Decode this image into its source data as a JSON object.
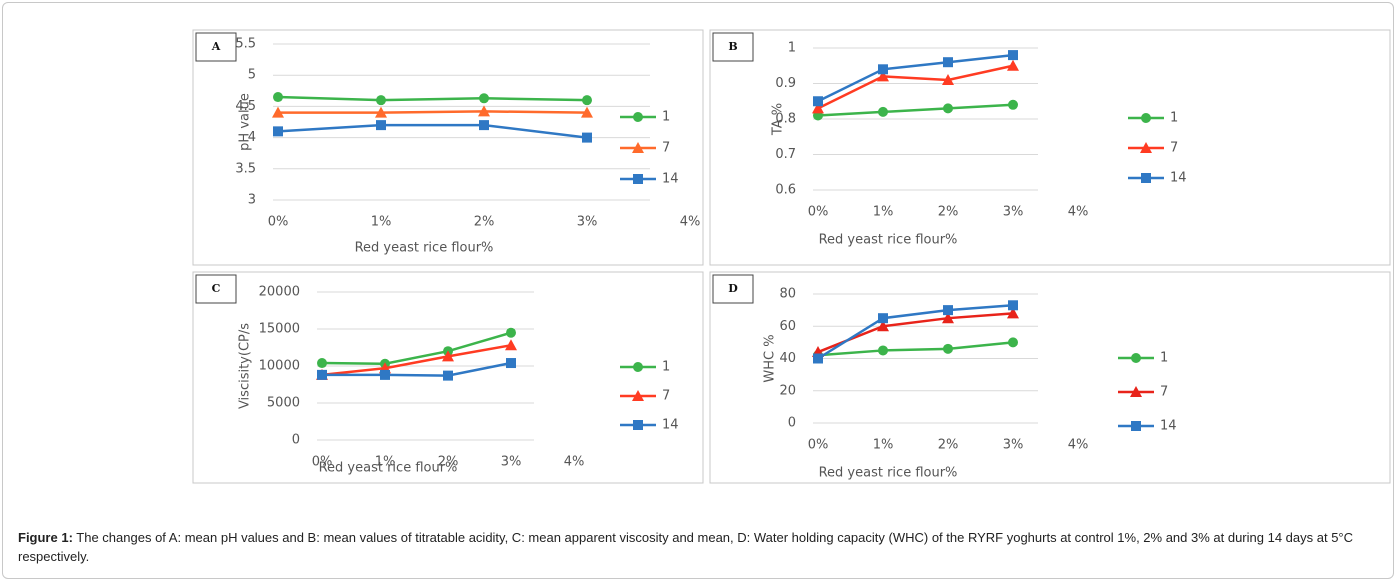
{
  "chart_data": [
    {
      "type": "line",
      "title": "A",
      "y_label": "pH value",
      "x_label": "Red yeast rice flour%",
      "x": [
        0,
        1,
        2,
        3
      ],
      "xlim": [
        0,
        4
      ],
      "xticks": [
        {
          "value": 0,
          "label": "0%"
        },
        {
          "value": 1,
          "label": "1%"
        },
        {
          "value": 2,
          "label": "2%"
        },
        {
          "value": 3,
          "label": "3%"
        },
        {
          "value": 4,
          "label": "4%"
        }
      ],
      "ylim": [
        3,
        5.5
      ],
      "yticks": [
        3,
        3.5,
        4,
        4.5,
        5,
        5.5
      ],
      "grid": true,
      "legend": "right",
      "series": [
        {
          "name": "1",
          "color": "#3cb44b",
          "marker": "circle",
          "values": [
            4.65,
            4.6,
            4.63,
            4.6
          ]
        },
        {
          "name": "7",
          "color": "#ff6a2b",
          "marker": "triangle",
          "values": [
            4.4,
            4.4,
            4.42,
            4.4
          ]
        },
        {
          "name": "14",
          "color": "#2f78c4",
          "marker": "square",
          "values": [
            4.1,
            4.2,
            4.2,
            4.0
          ]
        }
      ]
    },
    {
      "type": "line",
      "title": "B",
      "y_label": "TA %",
      "x_label": "Red yeast rice flour%",
      "x": [
        0,
        1,
        2,
        3
      ],
      "xlim": [
        0,
        4
      ],
      "xticks": [
        {
          "value": 0,
          "label": "0%"
        },
        {
          "value": 1,
          "label": "1%"
        },
        {
          "value": 2,
          "label": "2%"
        },
        {
          "value": 3,
          "label": "3%"
        },
        {
          "value": 4,
          "label": "4%"
        }
      ],
      "ylim": [
        0.6,
        1
      ],
      "yticks": [
        0.6,
        0.7,
        0.8,
        0.9,
        1
      ],
      "grid": true,
      "legend": "right",
      "series": [
        {
          "name": "1",
          "color": "#3cb44b",
          "marker": "circle",
          "values": [
            0.81,
            0.82,
            0.83,
            0.84
          ]
        },
        {
          "name": "7",
          "color": "#ff3b22",
          "marker": "triangle",
          "values": [
            0.83,
            0.92,
            0.91,
            0.95
          ]
        },
        {
          "name": "14",
          "color": "#2f78c4",
          "marker": "square",
          "values": [
            0.85,
            0.94,
            0.96,
            0.98
          ]
        }
      ]
    },
    {
      "type": "line",
      "title": "C",
      "y_label": "Viscisity(CP/s",
      "x_label": "Red yeast rice flour%",
      "x": [
        0,
        1,
        2,
        3
      ],
      "xlim": [
        0,
        4
      ],
      "xticks": [
        {
          "value": 0,
          "label": "0%"
        },
        {
          "value": 1,
          "label": "1%"
        },
        {
          "value": 2,
          "label": "2%"
        },
        {
          "value": 3,
          "label": "3%"
        },
        {
          "value": 4,
          "label": "4%"
        }
      ],
      "ylim": [
        0,
        20000
      ],
      "yticks": [
        0,
        5000,
        10000,
        15000,
        20000
      ],
      "grid": true,
      "legend": "right",
      "series": [
        {
          "name": "1",
          "color": "#3cb44b",
          "marker": "circle",
          "values": [
            10400,
            10300,
            12000,
            14500
          ]
        },
        {
          "name": "7",
          "color": "#ff3b22",
          "marker": "triangle",
          "values": [
            8800,
            9700,
            11300,
            12800
          ]
        },
        {
          "name": "14",
          "color": "#2f78c4",
          "marker": "square",
          "values": [
            8800,
            8800,
            8700,
            10400
          ]
        }
      ]
    },
    {
      "type": "line",
      "title": "D",
      "y_label": "WHC %",
      "x_label": "Red yeast rice flour%",
      "x": [
        0,
        1,
        2,
        3
      ],
      "xlim": [
        0,
        4
      ],
      "xticks": [
        {
          "value": 0,
          "label": "0%"
        },
        {
          "value": 1,
          "label": "1%"
        },
        {
          "value": 2,
          "label": "2%"
        },
        {
          "value": 3,
          "label": "3%"
        },
        {
          "value": 4,
          "label": "4%"
        }
      ],
      "ylim": [
        0,
        80
      ],
      "yticks": [
        0,
        20,
        40,
        60,
        80
      ],
      "grid": true,
      "legend": "right",
      "series": [
        {
          "name": "1",
          "color": "#3cb44b",
          "marker": "circle",
          "values": [
            42,
            45,
            46,
            50
          ]
        },
        {
          "name": "7",
          "color": "#e8231a",
          "marker": "triangle",
          "values": [
            44,
            60,
            65,
            68
          ]
        },
        {
          "name": "14",
          "color": "#2f78c4",
          "marker": "square",
          "values": [
            40,
            65,
            70,
            73
          ]
        }
      ]
    }
  ],
  "caption": {
    "label": "Figure 1:",
    "text": "The changes of A: mean pH values and B: mean values of titratable acidity, C: mean apparent viscosity and mean, D: Water holding capacity (WHC) of the RYRF yoghurts at control 1%, 2% and 3% at during 14 days at 5°C respectively."
  }
}
